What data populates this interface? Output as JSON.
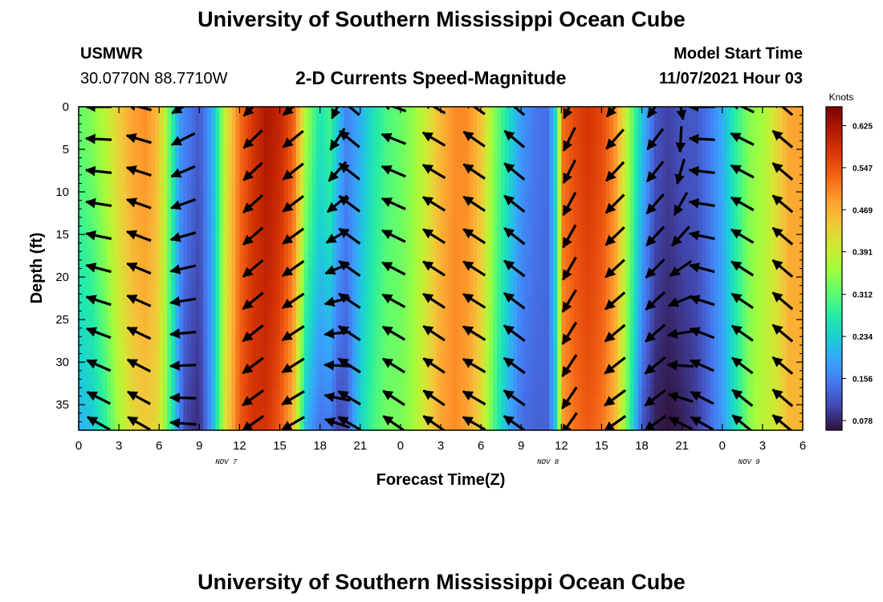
{
  "header": {
    "title": "University of Southern Mississippi Ocean Cube",
    "station_name": "USMWR",
    "station_coords": "30.0770N  88.7710W",
    "plot_subtitle": "2-D Currents Speed-Magnitude",
    "model_start_label": "Model Start Time",
    "model_start_value": "11/07/2021 Hour 03"
  },
  "footer": {
    "title": "University of Southern Mississippi Ocean Cube"
  },
  "chart_data": {
    "type": "heatmap",
    "title": "2-D Currents Speed-Magnitude",
    "xlabel": "Forecast Time(Z)",
    "ylabel": "Depth (ft)",
    "x_tick_labels": [
      "0",
      "3",
      "6",
      "9",
      "12",
      "15",
      "18",
      "21",
      "0",
      "3",
      "6",
      "9",
      "12",
      "15",
      "18",
      "21",
      "0",
      "3",
      "6"
    ],
    "x_date_labels": [
      {
        "text": "NOV 7",
        "at_hour": 11
      },
      {
        "text": "NOV 8",
        "at_hour": 35
      },
      {
        "text": "NOV 9",
        "at_hour": 50
      }
    ],
    "x_range_hours": [
      0,
      54
    ],
    "y_tick_labels": [
      "0",
      "5",
      "10",
      "15",
      "20",
      "25",
      "30",
      "35"
    ],
    "y_range": [
      0,
      38
    ],
    "y_reversed": true,
    "colorbar": {
      "unit_label": "Knots",
      "tick_labels": [
        "0.625",
        "0.547",
        "0.469",
        "0.391",
        "0.312",
        "0.234",
        "0.156",
        "0.078"
      ],
      "range": [
        0.06,
        0.66
      ],
      "colormap": [
        "#30123b",
        "#4145ab",
        "#4675ed",
        "#39a2fc",
        "#1bcfd4",
        "#24eca6",
        "#61fc6c",
        "#a4fc3b",
        "#d1e834",
        "#f3c63a",
        "#fe9b2d",
        "#f36315",
        "#d93806",
        "#b11901",
        "#7a0402"
      ]
    },
    "speed_profiles": {
      "hours": [
        0,
        1,
        2,
        3,
        4,
        5,
        6,
        7,
        7.5,
        8,
        9,
        10,
        11,
        12,
        13,
        14,
        15,
        16,
        17,
        18,
        18.7,
        19.4,
        20,
        21,
        22,
        23,
        24,
        25,
        26,
        27,
        28,
        29,
        30,
        31,
        32,
        33,
        34,
        35,
        35.7,
        36,
        37,
        38,
        39,
        40,
        41,
        42,
        43,
        44,
        45,
        46,
        47,
        48,
        49,
        50,
        51,
        52,
        53,
        54
      ],
      "surface_knots": [
        0.32,
        0.34,
        0.38,
        0.44,
        0.48,
        0.5,
        0.45,
        0.28,
        0.18,
        0.16,
        0.12,
        0.2,
        0.4,
        0.52,
        0.58,
        0.62,
        0.6,
        0.54,
        0.36,
        0.26,
        0.3,
        0.22,
        0.16,
        0.2,
        0.26,
        0.3,
        0.32,
        0.35,
        0.4,
        0.46,
        0.5,
        0.5,
        0.45,
        0.34,
        0.26,
        0.18,
        0.15,
        0.14,
        0.27,
        0.52,
        0.56,
        0.58,
        0.56,
        0.5,
        0.36,
        0.22,
        0.12,
        0.1,
        0.12,
        0.12,
        0.15,
        0.2,
        0.28,
        0.34,
        0.36,
        0.42,
        0.48,
        0.48
      ],
      "bottom_knots": [
        0.2,
        0.22,
        0.28,
        0.36,
        0.42,
        0.44,
        0.42,
        0.26,
        0.16,
        0.1,
        0.08,
        0.2,
        0.42,
        0.54,
        0.58,
        0.58,
        0.54,
        0.46,
        0.2,
        0.14,
        0.15,
        0.1,
        0.12,
        0.24,
        0.3,
        0.33,
        0.33,
        0.36,
        0.42,
        0.48,
        0.5,
        0.48,
        0.42,
        0.3,
        0.2,
        0.14,
        0.13,
        0.13,
        0.25,
        0.48,
        0.52,
        0.54,
        0.52,
        0.46,
        0.3,
        0.12,
        0.07,
        0.06,
        0.07,
        0.09,
        0.13,
        0.18,
        0.26,
        0.34,
        0.38,
        0.4,
        0.46,
        0.46
      ]
    },
    "vector_columns": [
      {
        "hour": 1.5,
        "angle_top_deg": 180,
        "angle_bottom_deg": 150
      },
      {
        "hour": 4.5,
        "angle_top_deg": 165,
        "angle_bottom_deg": 150
      },
      {
        "hour": 7.8,
        "angle_top_deg": 210,
        "angle_bottom_deg": 175
      },
      {
        "hour": 13.0,
        "angle_top_deg": 225,
        "angle_bottom_deg": 215
      },
      {
        "hour": 16.0,
        "angle_top_deg": 220,
        "angle_bottom_deg": 210
      },
      {
        "hour": 19.3,
        "angle_top_deg": 245,
        "angle_bottom_deg": 160
      },
      {
        "hour": 20.2,
        "angle_top_deg": 140,
        "angle_bottom_deg": 150
      },
      {
        "hour": 23.5,
        "angle_top_deg": 160,
        "angle_bottom_deg": 145
      },
      {
        "hour": 26.5,
        "angle_top_deg": 150,
        "angle_bottom_deg": 145
      },
      {
        "hour": 29.5,
        "angle_top_deg": 145,
        "angle_bottom_deg": 150
      },
      {
        "hour": 32.5,
        "angle_top_deg": 140,
        "angle_bottom_deg": 145
      },
      {
        "hour": 36.6,
        "angle_top_deg": 245,
        "angle_bottom_deg": 235
      },
      {
        "hour": 40.0,
        "angle_top_deg": 230,
        "angle_bottom_deg": 215
      },
      {
        "hour": 43.0,
        "angle_top_deg": 235,
        "angle_bottom_deg": 215
      },
      {
        "hour": 44.9,
        "angle_top_deg": 280,
        "angle_bottom_deg": 150
      },
      {
        "hour": 46.5,
        "angle_top_deg": 180,
        "angle_bottom_deg": 150
      },
      {
        "hour": 49.5,
        "angle_top_deg": 155,
        "angle_bottom_deg": 140
      },
      {
        "hour": 52.5,
        "angle_top_deg": 140,
        "angle_bottom_deg": 140
      }
    ],
    "vector_depths_ft": [
      0,
      3.8,
      7.6,
      11.4,
      15.2,
      19,
      22.8,
      26.6,
      30.4,
      34.2,
      37.2
    ]
  }
}
